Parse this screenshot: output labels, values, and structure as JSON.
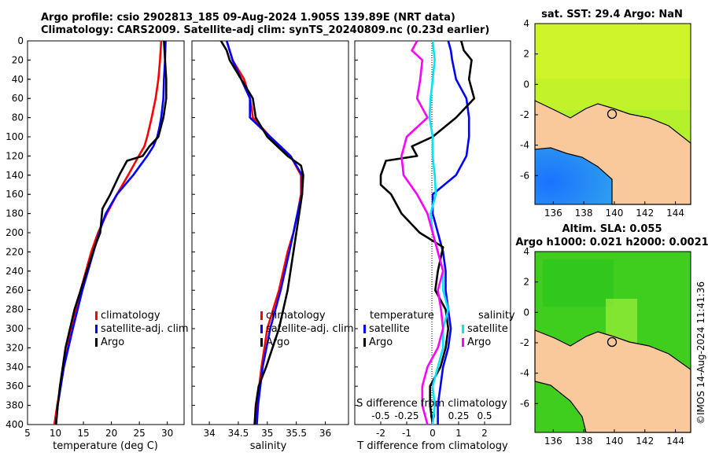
{
  "title": {
    "line1": "Argo profile: csio 2902813_185 09-Aug-2024 1.905S 139.89E (NRT data)",
    "line2": "Climatology: CARS2009. Satellite-adj clim: synTS_20240809.nc (0.23d earlier)"
  },
  "colors": {
    "climatology": "#ff0000",
    "satellite": "#0000ff",
    "argo": "#000000",
    "sat_salinity": "#00e5ff",
    "salinity": "#ff00ff",
    "land": "#f9c99b"
  },
  "chart_data": [
    {
      "type": "line",
      "name": "temperature",
      "xlabel": "temperature (deg C)",
      "ylabel": "",
      "xlim": [
        5,
        33
      ],
      "ylim": [
        400,
        0
      ],
      "xticks": [
        5,
        10,
        15,
        20,
        25,
        30
      ],
      "yticks": [
        0,
        20,
        40,
        60,
        80,
        100,
        120,
        140,
        160,
        180,
        200,
        220,
        240,
        260,
        280,
        300,
        320,
        340,
        360,
        380,
        400
      ],
      "legend": [
        "climatology",
        "satellite-adj. clim",
        "Argo"
      ],
      "series": [
        {
          "name": "climatology",
          "color": "#ff0000",
          "depth": [
            0,
            20,
            40,
            60,
            80,
            100,
            110,
            120,
            140,
            160,
            180,
            200,
            220,
            260,
            300,
            340,
            380,
            400
          ],
          "values": [
            28.9,
            28.7,
            28.4,
            27.9,
            27.2,
            26.4,
            25.9,
            24.9,
            23.0,
            21.0,
            19.2,
            17.6,
            16.4,
            14.5,
            12.9,
            11.5,
            10.3,
            9.8
          ]
        },
        {
          "name": "satellite-adj. clim",
          "color": "#0000ff",
          "depth": [
            0,
            20,
            40,
            60,
            80,
            90,
            100,
            110,
            120,
            140,
            160,
            180,
            200,
            220,
            260,
            300,
            340,
            380,
            400
          ],
          "values": [
            29.7,
            29.6,
            29.4,
            29.3,
            28.9,
            28.6,
            28.2,
            27.5,
            26.4,
            23.9,
            21.0,
            19.0,
            17.8,
            16.8,
            14.8,
            13.1,
            11.5,
            10.4,
            10.1
          ]
        },
        {
          "name": "Argo",
          "color": "#000000",
          "depth": [
            0,
            10,
            20,
            40,
            60,
            80,
            100,
            110,
            120,
            125,
            140,
            160,
            175,
            200,
            215,
            240,
            280,
            320,
            360,
            380,
            400
          ],
          "values": [
            29.4,
            29.5,
            29.6,
            29.8,
            29.8,
            29.3,
            28.4,
            26.8,
            25.6,
            22.8,
            21.4,
            19.8,
            18.4,
            18.0,
            17.0,
            15.6,
            13.4,
            11.8,
            10.8,
            10.4,
            10.1
          ]
        }
      ]
    },
    {
      "type": "line",
      "name": "salinity",
      "xlabel": "salinity",
      "xlim": [
        33.7,
        36.4
      ],
      "ylim": [
        400,
        0
      ],
      "xticks": [
        34,
        34.5,
        35,
        35.5,
        36
      ],
      "xticklabels": [
        "34",
        "34.5",
        "35",
        "35.5",
        "36"
      ],
      "legend": [
        "climatology",
        "satellite-adj. clim",
        "Argo"
      ],
      "series": [
        {
          "name": "climatology",
          "color": "#ff0000",
          "depth": [
            0,
            20,
            40,
            60,
            70,
            80,
            100,
            120,
            140,
            160,
            180,
            200,
            220,
            260,
            300,
            340,
            380,
            400
          ],
          "values": [
            34.3,
            34.4,
            34.6,
            34.7,
            34.73,
            34.75,
            35.05,
            35.4,
            35.58,
            35.58,
            35.52,
            35.45,
            35.35,
            35.2,
            35.0,
            34.9,
            34.82,
            34.8
          ]
        },
        {
          "name": "satellite-adj. clim",
          "color": "#0000ff",
          "depth": [
            0,
            20,
            40,
            60,
            80,
            100,
            120,
            140,
            160,
            180,
            200,
            220,
            260,
            300,
            340,
            380,
            400
          ],
          "values": [
            34.3,
            34.4,
            34.55,
            34.7,
            34.7,
            35.05,
            35.4,
            35.6,
            35.6,
            35.52,
            35.45,
            35.38,
            35.23,
            35.05,
            34.92,
            34.84,
            34.82
          ]
        },
        {
          "name": "Argo",
          "color": "#000000",
          "depth": [
            0,
            10,
            20,
            40,
            60,
            80,
            100,
            120,
            130,
            140,
            160,
            180,
            200,
            220,
            260,
            300,
            340,
            360,
            380,
            400
          ],
          "values": [
            34.2,
            34.3,
            34.35,
            34.55,
            34.75,
            34.8,
            35.0,
            35.35,
            35.58,
            35.62,
            35.6,
            35.55,
            35.5,
            35.45,
            35.35,
            35.2,
            34.98,
            34.85,
            34.8,
            34.78
          ]
        }
      ]
    },
    {
      "type": "line",
      "name": "difference from climatology",
      "xlabel": "T difference from climatology",
      "top_xlabel": "S difference from climatology",
      "xlim": [
        -3.0,
        3.0
      ],
      "ylim": [
        400,
        0
      ],
      "xticks": [
        -2,
        -1,
        0,
        1,
        2
      ],
      "xticklabels": [
        "-2",
        "-1",
        "0",
        "1",
        "2"
      ],
      "top_xticks": [
        -0.5,
        -0.25,
        0,
        0.25,
        0.5
      ],
      "top_xticklabels": [
        "-0.5",
        "-0.25",
        "0",
        "0.25",
        "0.5"
      ],
      "legend_left_title": "temperature",
      "legend_right_title": "salinity",
      "legend_left": [
        "satellite",
        "Argo"
      ],
      "legend_right": [
        "satellite",
        "Argo"
      ],
      "series": [
        {
          "name": "temperature satellite",
          "color": "#0000ff",
          "depth": [
            0,
            10,
            20,
            40,
            60,
            80,
            100,
            120,
            140,
            160,
            180,
            200,
            220,
            240,
            260,
            280,
            300,
            320,
            340,
            360,
            380,
            400
          ],
          "values": [
            0.6,
            0.7,
            0.75,
            0.9,
            1.3,
            1.4,
            1.4,
            1.3,
            0.9,
            0.0,
            0.0,
            0.2,
            0.4,
            0.5,
            0.5,
            0.6,
            0.7,
            0.6,
            0.4,
            0.3,
            0.2,
            0.2
          ]
        },
        {
          "name": "temperature Argo",
          "color": "#000000",
          "depth": [
            0,
            10,
            20,
            40,
            60,
            80,
            100,
            110,
            120,
            125,
            140,
            150,
            160,
            180,
            200,
            215,
            240,
            260,
            280,
            300,
            320,
            340,
            360,
            380,
            400
          ],
          "values": [
            1.1,
            1.2,
            1.5,
            1.4,
            1.6,
            0.9,
            0.0,
            -0.8,
            -0.6,
            -1.8,
            -2.0,
            -2.0,
            -1.6,
            -1.2,
            -0.5,
            0.4,
            0.2,
            0.1,
            0.5,
            0.6,
            0.5,
            0.3,
            -0.1,
            -0.1,
            0.0
          ]
        },
        {
          "name": "salinity satellite",
          "color": "#00e5ff",
          "depth": [
            0,
            20,
            40,
            60,
            80,
            100,
            120,
            140,
            160,
            180,
            200,
            220,
            240,
            260,
            280,
            300,
            320,
            340,
            360,
            380,
            400
          ],
          "values": [
            0.0,
            0.02,
            0.0,
            -0.02,
            -0.03,
            0.0,
            0.0,
            0.02,
            0.03,
            -0.02,
            0.0,
            0.05,
            0.1,
            0.1,
            0.15,
            0.1,
            0.1,
            0.05,
            0.0,
            0.02,
            0.0
          ]
        },
        {
          "name": "salinity Argo",
          "color": "#ff00ff",
          "depth": [
            0,
            10,
            20,
            40,
            60,
            80,
            100,
            120,
            140,
            160,
            180,
            200,
            220,
            240,
            260,
            280,
            300,
            320,
            340,
            360,
            380,
            400
          ],
          "values": [
            -0.15,
            -0.2,
            -0.1,
            -0.12,
            -0.15,
            -0.05,
            -0.25,
            -0.3,
            -0.28,
            -0.15,
            -0.05,
            0.0,
            0.05,
            0.1,
            0.05,
            0.08,
            0.1,
            0.05,
            -0.05,
            -0.1,
            -0.1,
            -0.05
          ]
        }
      ]
    }
  ],
  "maps": [
    {
      "title": "sat. SST: 29.4 Argo: NaN",
      "xticks": [
        136,
        138,
        140,
        142,
        144
      ],
      "yticks": [
        4,
        2,
        0,
        -2,
        -4,
        -6
      ]
    },
    {
      "title1": "Altim. SLA: 0.055",
      "title2": "Argo h1000: 0.021 h2000: 0.0021",
      "xticks": [
        136,
        138,
        140,
        142,
        144
      ],
      "yticks": [
        4,
        2,
        0,
        -2,
        -4,
        -6
      ]
    }
  ],
  "credit": "©IMOS 14-Aug-2024 11:41:36"
}
